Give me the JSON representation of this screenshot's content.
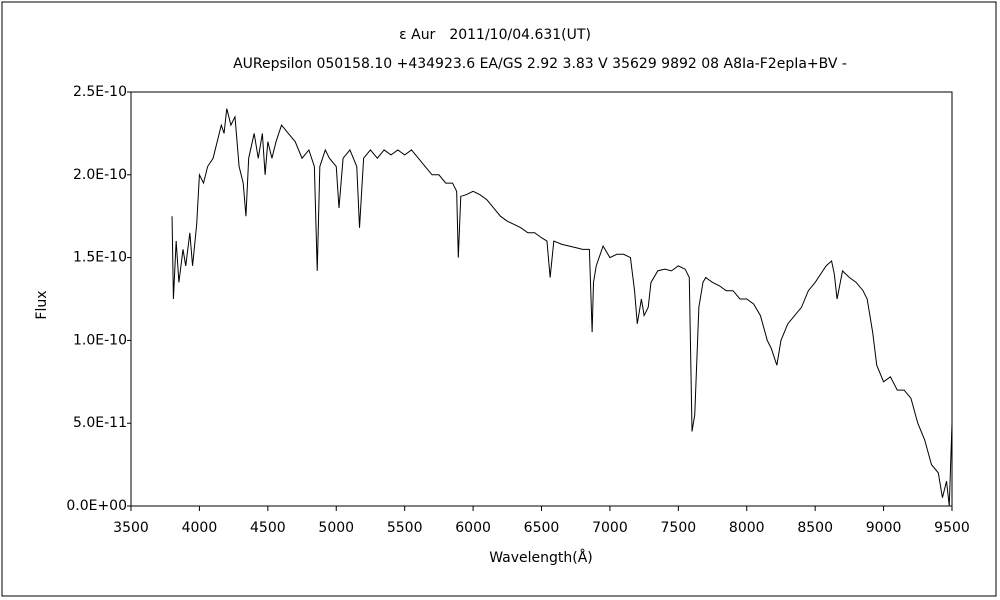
{
  "chart_data": {
    "type": "line",
    "title": "ε Aur　2011/10/04.631(UT)",
    "subtitle": "AURepsilon 050158.10 +434923.6 EA/GS 2.92 3.83 V 35629 9892 08 A8Ia-F2epIa+BV -",
    "x_label": "Wavelength(Å)",
    "y_label": "Flux",
    "color": "#000000",
    "xlim": [
      3500,
      9500
    ],
    "xticks": [
      3500,
      4000,
      4500,
      5000,
      5500,
      6000,
      6500,
      7000,
      7500,
      8000,
      8500,
      9000,
      9500
    ],
    "ylim": [
      0,
      2.5e-10
    ],
    "yticks": [
      {
        "value": 0,
        "label": "0.0E+00"
      },
      {
        "value": 5e-11,
        "label": "5.0E-11"
      },
      {
        "value": 1e-10,
        "label": "1.0E-10"
      },
      {
        "value": 1.5e-10,
        "label": "1.5E-10"
      },
      {
        "value": 2e-10,
        "label": "2.0E-10"
      },
      {
        "value": 2.5e-10,
        "label": "2.5E-10"
      }
    ],
    "x": [
      3800,
      3810,
      3830,
      3850,
      3880,
      3900,
      3930,
      3950,
      3980,
      4000,
      4030,
      4060,
      4100,
      4130,
      4160,
      4180,
      4200,
      4230,
      4260,
      4290,
      4320,
      4340,
      4360,
      4400,
      4430,
      4460,
      4480,
      4500,
      4530,
      4560,
      4600,
      4650,
      4700,
      4750,
      4800,
      4840,
      4861,
      4880,
      4920,
      4950,
      5000,
      5020,
      5050,
      5100,
      5150,
      5170,
      5200,
      5250,
      5300,
      5350,
      5400,
      5450,
      5500,
      5550,
      5600,
      5650,
      5700,
      5750,
      5800,
      5850,
      5880,
      5892,
      5910,
      5950,
      6000,
      6050,
      6100,
      6150,
      6200,
      6250,
      6300,
      6350,
      6400,
      6450,
      6500,
      6540,
      6563,
      6590,
      6650,
      6700,
      6750,
      6800,
      6850,
      6870,
      6880,
      6900,
      6950,
      7000,
      7050,
      7100,
      7150,
      7180,
      7200,
      7230,
      7250,
      7280,
      7300,
      7350,
      7400,
      7450,
      7500,
      7550,
      7580,
      7600,
      7620,
      7650,
      7680,
      7700,
      7750,
      7800,
      7850,
      7900,
      7950,
      8000,
      8050,
      8100,
      8150,
      8180,
      8220,
      8250,
      8300,
      8350,
      8400,
      8450,
      8500,
      8540,
      8580,
      8620,
      8640,
      8660,
      8700,
      8750,
      8800,
      8850,
      8880,
      8920,
      8950,
      9000,
      9050,
      9100,
      9150,
      9200,
      9250,
      9300,
      9350,
      9400,
      9430,
      9460,
      9480,
      9500
    ],
    "values": [
      1.75e-10,
      1.25e-10,
      1.6e-10,
      1.35e-10,
      1.55e-10,
      1.45e-10,
      1.65e-10,
      1.45e-10,
      1.7e-10,
      2e-10,
      1.95e-10,
      2.05e-10,
      2.1e-10,
      2.2e-10,
      2.3e-10,
      2.25e-10,
      2.4e-10,
      2.3e-10,
      2.35e-10,
      2.05e-10,
      1.95e-10,
      1.75e-10,
      2.1e-10,
      2.25e-10,
      2.1e-10,
      2.25e-10,
      2e-10,
      2.2e-10,
      2.1e-10,
      2.2e-10,
      2.3e-10,
      2.25e-10,
      2.2e-10,
      2.1e-10,
      2.15e-10,
      2.05e-10,
      1.42e-10,
      2.05e-10,
      2.15e-10,
      2.1e-10,
      2.05e-10,
      1.8e-10,
      2.1e-10,
      2.15e-10,
      2.05e-10,
      1.68e-10,
      2.1e-10,
      2.15e-10,
      2.1e-10,
      2.15e-10,
      2.12e-10,
      2.15e-10,
      2.12e-10,
      2.15e-10,
      2.1e-10,
      2.05e-10,
      2e-10,
      2e-10,
      1.95e-10,
      1.95e-10,
      1.9e-10,
      1.5e-10,
      1.87e-10,
      1.88e-10,
      1.9e-10,
      1.88e-10,
      1.85e-10,
      1.8e-10,
      1.75e-10,
      1.72e-10,
      1.7e-10,
      1.68e-10,
      1.65e-10,
      1.65e-10,
      1.62e-10,
      1.6e-10,
      1.38e-10,
      1.6e-10,
      1.58e-10,
      1.57e-10,
      1.56e-10,
      1.55e-10,
      1.55e-10,
      1.05e-10,
      1.35e-10,
      1.45e-10,
      1.57e-10,
      1.5e-10,
      1.52e-10,
      1.52e-10,
      1.5e-10,
      1.3e-10,
      1.1e-10,
      1.25e-10,
      1.15e-10,
      1.2e-10,
      1.35e-10,
      1.42e-10,
      1.43e-10,
      1.42e-10,
      1.45e-10,
      1.43e-10,
      1.38e-10,
      4.5e-11,
      5.5e-11,
      1.2e-10,
      1.35e-10,
      1.38e-10,
      1.35e-10,
      1.33e-10,
      1.3e-10,
      1.3e-10,
      1.25e-10,
      1.25e-10,
      1.22e-10,
      1.15e-10,
      1e-10,
      9.5e-11,
      8.5e-11,
      1e-10,
      1.1e-10,
      1.15e-10,
      1.2e-10,
      1.3e-10,
      1.35e-10,
      1.4e-10,
      1.45e-10,
      1.48e-10,
      1.4e-10,
      1.25e-10,
      1.42e-10,
      1.38e-10,
      1.35e-10,
      1.3e-10,
      1.25e-10,
      1.05e-10,
      8.5e-11,
      7.5e-11,
      7.8e-11,
      7e-11,
      7e-11,
      6.5e-11,
      5e-11,
      4e-11,
      2.5e-11,
      2e-11,
      5e-12,
      1.5e-11,
      0,
      5e-11
    ]
  }
}
